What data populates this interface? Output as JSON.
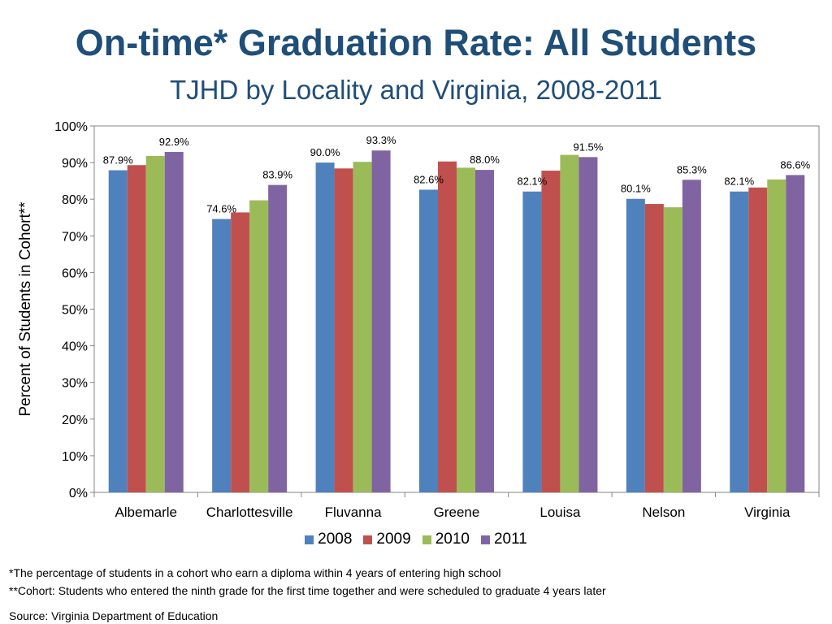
{
  "title": "On-time* Graduation Rate: All Students",
  "subtitle": "TJHD by Locality and Virginia, 2008-2011",
  "chart_data": {
    "type": "bar",
    "categories": [
      "Albemarle",
      "Charlottesville",
      "Fluvanna",
      "Greene",
      "Louisa",
      "Nelson",
      "Virginia"
    ],
    "series": [
      {
        "name": "2008",
        "color": "#4F81BD",
        "values": [
          87.9,
          74.6,
          90.0,
          82.6,
          82.1,
          80.1,
          82.1
        ]
      },
      {
        "name": "2009",
        "color": "#C0504D",
        "values": [
          89.3,
          76.4,
          88.4,
          90.3,
          87.8,
          78.7,
          83.2
        ]
      },
      {
        "name": "2010",
        "color": "#9BBB59",
        "values": [
          91.8,
          79.7,
          90.2,
          88.6,
          92.1,
          77.8,
          85.4
        ]
      },
      {
        "name": "2011",
        "color": "#8064A2",
        "values": [
          92.9,
          83.9,
          93.3,
          88.0,
          91.5,
          85.3,
          86.6
        ]
      }
    ],
    "data_labels": [
      {
        "category": "Albemarle",
        "series": "2008",
        "text": "87.9%"
      },
      {
        "category": "Albemarle",
        "series": "2011",
        "text": "92.9%"
      },
      {
        "category": "Charlottesville",
        "series": "2008",
        "text": "74.6%"
      },
      {
        "category": "Charlottesville",
        "series": "2011",
        "text": "83.9%"
      },
      {
        "category": "Fluvanna",
        "series": "2008",
        "text": "90.0%"
      },
      {
        "category": "Fluvanna",
        "series": "2011",
        "text": "93.3%"
      },
      {
        "category": "Greene",
        "series": "2008",
        "text": "82.6%"
      },
      {
        "category": "Greene",
        "series": "2011",
        "text": "88.0%"
      },
      {
        "category": "Louisa",
        "series": "2008",
        "text": "82.1%"
      },
      {
        "category": "Louisa",
        "series": "2011",
        "text": "91.5%"
      },
      {
        "category": "Nelson",
        "series": "2008",
        "text": "80.1%"
      },
      {
        "category": "Nelson",
        "series": "2011",
        "text": "85.3%"
      },
      {
        "category": "Virginia",
        "series": "2008",
        "text": "82.1%"
      },
      {
        "category": "Virginia",
        "series": "2011",
        "text": "86.6%"
      }
    ],
    "ylabel": "Percent of Students in Cohort**",
    "xlabel": "",
    "ylim": [
      0,
      100
    ],
    "yticks": [
      "0%",
      "10%",
      "20%",
      "30%",
      "40%",
      "50%",
      "60%",
      "70%",
      "80%",
      "90%",
      "100%"
    ],
    "grid": false,
    "legend_position": "bottom"
  },
  "footnotes": [
    "*The percentage of students in a cohort who earn a diploma within 4 years of entering high school",
    "**Cohort: Students who entered the ninth grade for the first time together and were scheduled to graduate 4 years later"
  ],
  "source": "Source: Virginia Department of Education"
}
